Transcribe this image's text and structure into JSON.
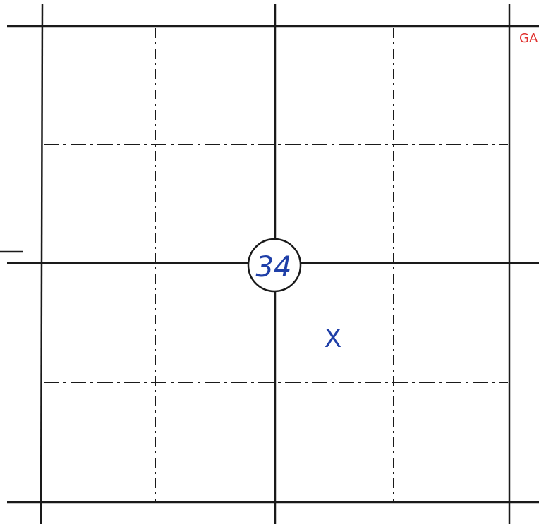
{
  "section_label": "34",
  "mark": "X",
  "corner_text": "GA"
}
